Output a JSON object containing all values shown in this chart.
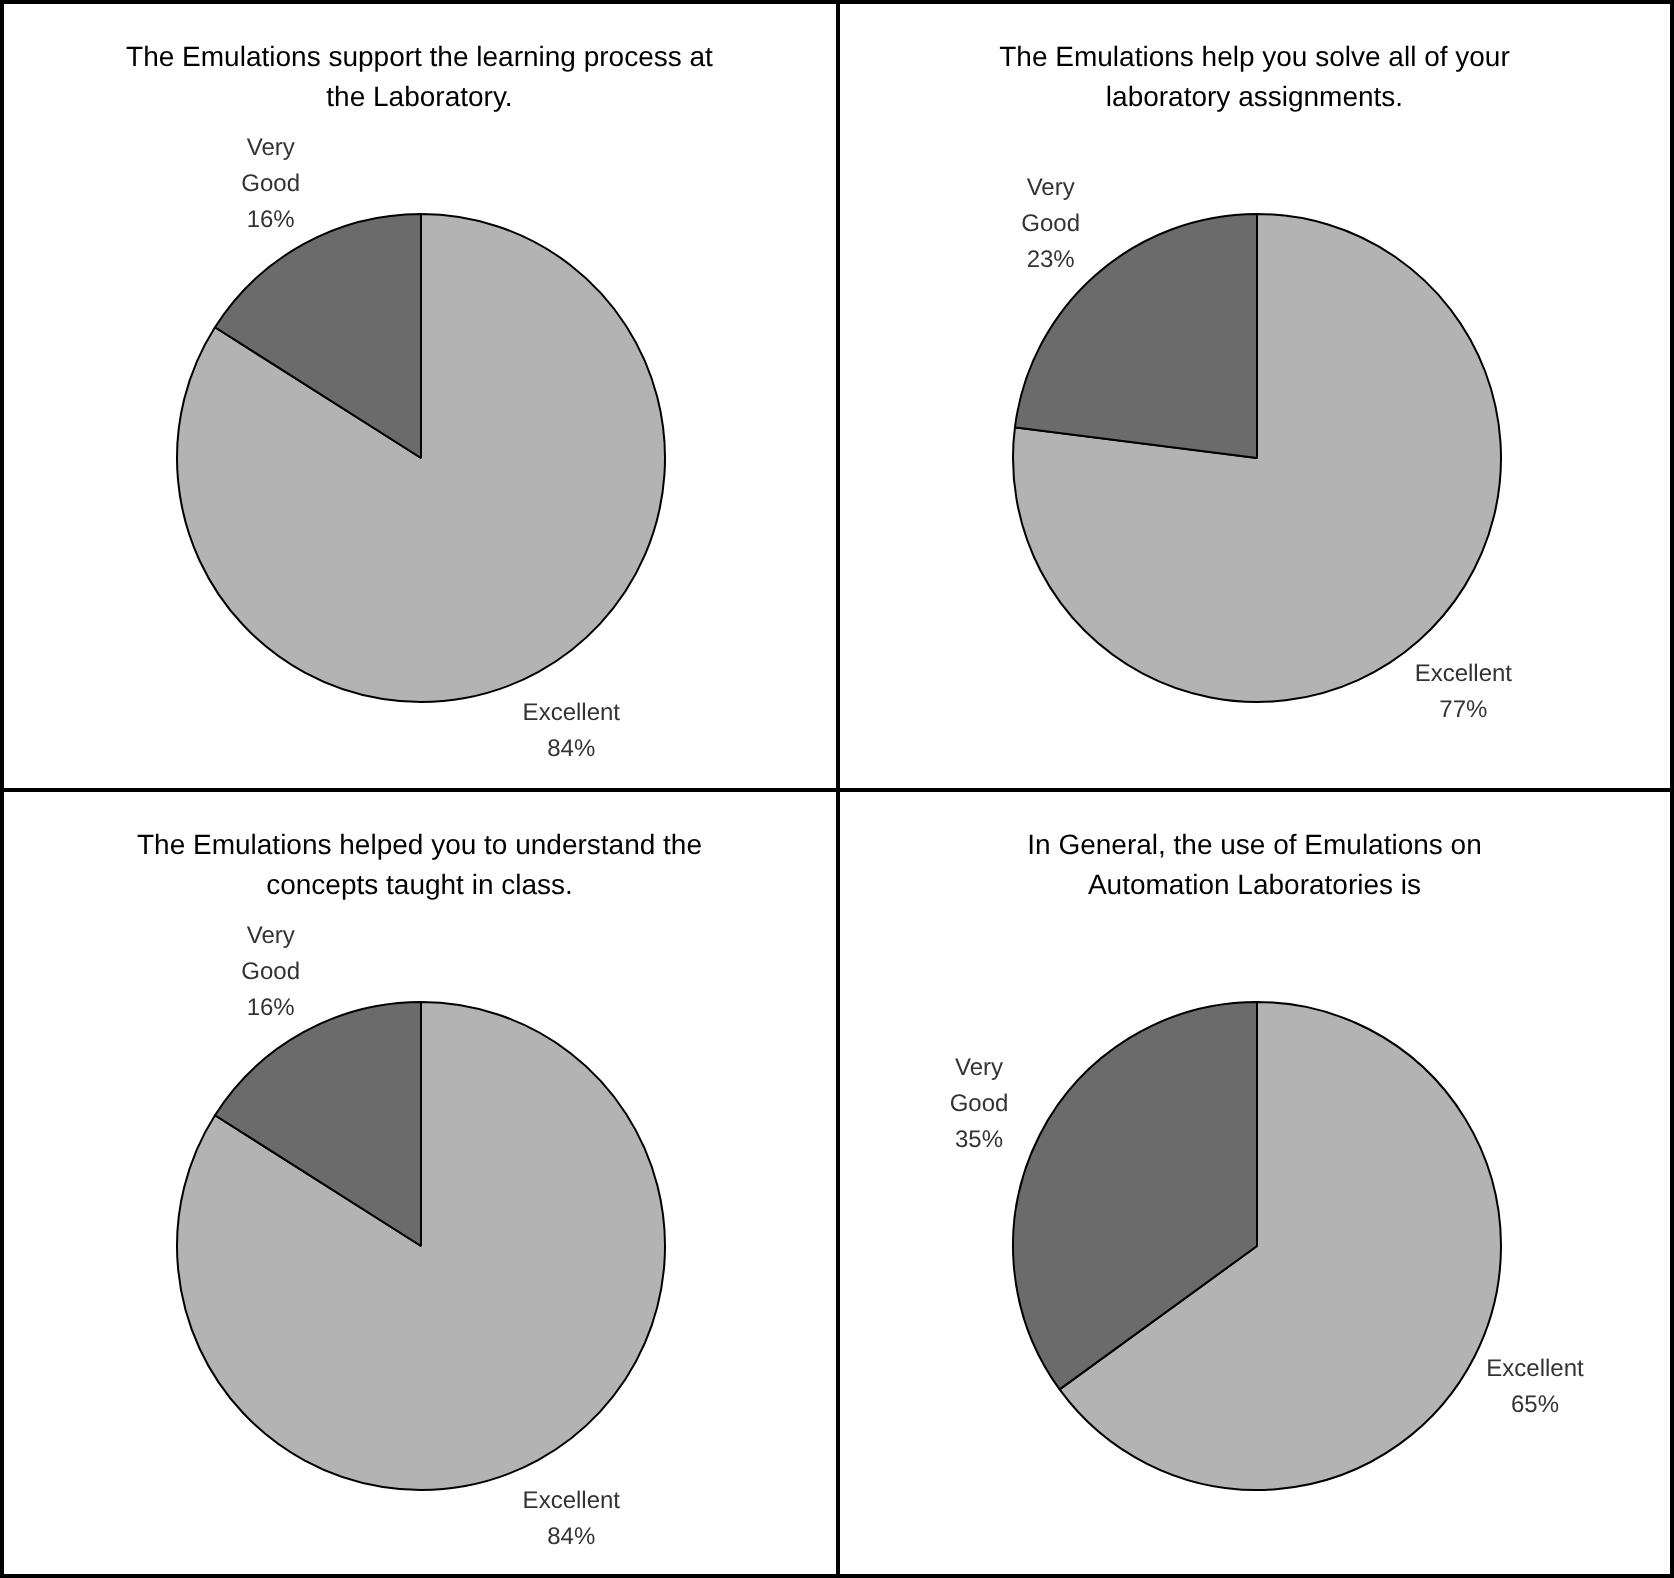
{
  "chart_data": [
    {
      "type": "pie",
      "title": "The Emulations support the learning process at the Laboratory.",
      "categories": [
        "Excellent",
        "Very Good"
      ],
      "values": [
        84,
        16
      ],
      "colors": [
        "#b3b3b3",
        "#6b6b6b"
      ],
      "value_labels": [
        "84%",
        "16%"
      ],
      "legend": false
    },
    {
      "type": "pie",
      "title": "The Emulations help you solve all of your laboratory assignments.",
      "categories": [
        "Excellent",
        "Very Good"
      ],
      "values": [
        77,
        23
      ],
      "colors": [
        "#b3b3b3",
        "#6b6b6b"
      ],
      "value_labels": [
        "77%",
        "23%"
      ],
      "legend": false
    },
    {
      "type": "pie",
      "title": "The Emulations helped you to understand the concepts taught in class.",
      "categories": [
        "Excellent",
        "Very Good"
      ],
      "values": [
        84,
        16
      ],
      "colors": [
        "#b3b3b3",
        "#6b6b6b"
      ],
      "value_labels": [
        "84%",
        "16%"
      ],
      "legend": false
    },
    {
      "type": "pie",
      "title": "In General, the use of Emulations on Automation Laboratories is",
      "categories": [
        "Excellent",
        "Very Good"
      ],
      "values": [
        65,
        35
      ],
      "colors": [
        "#b3b3b3",
        "#6b6b6b"
      ],
      "value_labels": [
        "65%",
        "35%"
      ],
      "legend": false
    }
  ]
}
